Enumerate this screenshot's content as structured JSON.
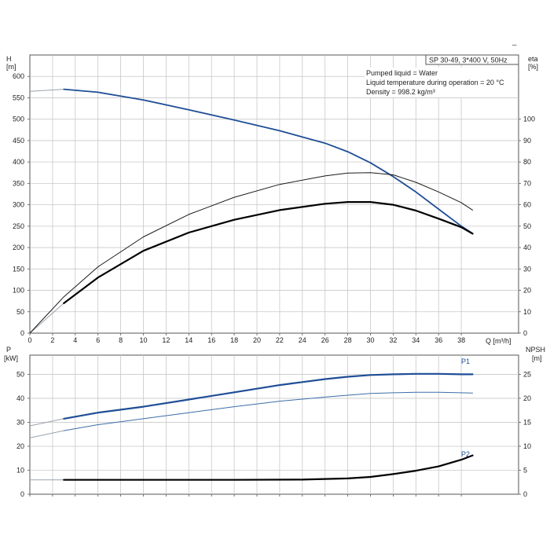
{
  "chart_data": [
    {
      "type": "line",
      "panel": "head-efficiency",
      "title": "SP 30-49, 3*400 V, 50Hz",
      "annotations": [
        "Pumped liquid = Water",
        "Liquid temperature during operation = 20 °C",
        "Density = 998.2 kg/m³"
      ],
      "xlabel": "Q [m³/h]",
      "xlim": [
        0,
        40
      ],
      "xticks": [
        0,
        2,
        4,
        6,
        8,
        10,
        12,
        14,
        16,
        18,
        20,
        22,
        24,
        26,
        28,
        30,
        32,
        34,
        36,
        38
      ],
      "ylabel_left": "H\n[m]",
      "ylabel_left_lines": [
        "H",
        "[m]"
      ],
      "ylim_left": [
        0,
        650
      ],
      "yticks_left": [
        0,
        50,
        100,
        150,
        200,
        250,
        300,
        350,
        400,
        450,
        500,
        550,
        600
      ],
      "ylabel_right_lines": [
        "eta",
        "[%]"
      ],
      "ylim_right": [
        0,
        130
      ],
      "yticks_right": [
        0,
        10,
        20,
        30,
        40,
        50,
        60,
        70,
        80,
        90,
        100
      ],
      "grid": true,
      "series": [
        {
          "axis": "left",
          "color": "#1f4e96",
          "extension_color": "#9aa3ad",
          "extension": [
            [
              0,
              565
            ],
            [
              3,
              570
            ]
          ],
          "points": [
            [
              3,
              570
            ],
            [
              6,
              563
            ],
            [
              10,
              545
            ],
            [
              14,
              522
            ],
            [
              18,
              498
            ],
            [
              22,
              473
            ],
            [
              26,
              444
            ],
            [
              28,
              424
            ],
            [
              30,
              398
            ],
            [
              32,
              366
            ],
            [
              34,
              330
            ],
            [
              36,
              290
            ],
            [
              38,
              250
            ],
            [
              39,
              233
            ]
          ]
        },
        {
          "axis": "right",
          "color": "#000000",
          "width": 2.2,
          "extension_color": "#9aa3ad",
          "extension": [
            [
              0,
              0
            ],
            [
              3,
              14
            ]
          ],
          "points": [
            [
              3,
              14
            ],
            [
              6,
              26
            ],
            [
              10,
              38.5
            ],
            [
              14,
              47
            ],
            [
              18,
              53
            ],
            [
              22,
              57.5
            ],
            [
              26,
              60.5
            ],
            [
              28,
              61.3
            ],
            [
              30,
              61.3
            ],
            [
              32,
              60
            ],
            [
              34,
              57.3
            ],
            [
              36,
              53.5
            ],
            [
              38,
              49.5
            ],
            [
              39,
              46.5
            ]
          ]
        },
        {
          "axis": "right",
          "color": "#1a1a1a",
          "width": 1,
          "points": [
            [
              0,
              0
            ],
            [
              3,
              17
            ],
            [
              6,
              31
            ],
            [
              10,
              45
            ],
            [
              14,
              55.5
            ],
            [
              18,
              63.5
            ],
            [
              22,
              69.5
            ],
            [
              26,
              73.5
            ],
            [
              28,
              74.8
            ],
            [
              30,
              75
            ],
            [
              32,
              74
            ],
            [
              34,
              70.5
            ],
            [
              36,
              66
            ],
            [
              38,
              61
            ],
            [
              39,
              57.5
            ]
          ]
        }
      ]
    },
    {
      "type": "line",
      "panel": "power-npsh",
      "xlim": [
        0,
        40
      ],
      "ylabel_left_lines": [
        "P",
        "[kW]"
      ],
      "ylim_left": [
        0,
        58
      ],
      "yticks_left": [
        0,
        10,
        20,
        30,
        40,
        50
      ],
      "ylabel_right_lines": [
        "NPSH",
        "[m]"
      ],
      "ylim_right": [
        0,
        29
      ],
      "yticks_right": [
        0,
        5,
        10,
        15,
        20,
        25
      ],
      "grid": true,
      "series": [
        {
          "name": "P1",
          "axis": "left",
          "color": "#1f4e96",
          "width": 2.2,
          "extension_color": "#9aa3ad",
          "extension": [
            [
              0,
              28.5
            ],
            [
              3,
              31.5
            ]
          ],
          "points": [
            [
              3,
              31.5
            ],
            [
              6,
              34
            ],
            [
              10,
              36.5
            ],
            [
              14,
              39.5
            ],
            [
              18,
              42.5
            ],
            [
              22,
              45.5
            ],
            [
              26,
              48
            ],
            [
              28,
              49
            ],
            [
              30,
              49.7
            ],
            [
              32,
              50
            ],
            [
              34,
              50.2
            ],
            [
              36,
              50.2
            ],
            [
              38,
              50
            ],
            [
              39,
              50
            ]
          ]
        },
        {
          "name": "P2",
          "axis": "left",
          "color": "#3c6ea8",
          "width": 1,
          "extension_color": "#9aa3ad",
          "extension": [
            [
              0,
              23.5
            ],
            [
              3,
              26.5
            ]
          ],
          "points": [
            [
              3,
              26.5
            ],
            [
              6,
              29
            ],
            [
              10,
              31.5
            ],
            [
              14,
              34
            ],
            [
              18,
              36.5
            ],
            [
              22,
              38.8
            ],
            [
              26,
              40.5
            ],
            [
              28,
              41.3
            ],
            [
              30,
              42
            ],
            [
              32,
              42.3
            ],
            [
              34,
              42.5
            ],
            [
              36,
              42.5
            ],
            [
              38,
              42.3
            ],
            [
              39,
              42.2
            ]
          ]
        },
        {
          "axis": "right",
          "color": "#000000",
          "width": 2.2,
          "extension_color": "#9aa3ad",
          "extension": [
            [
              0,
              3
            ],
            [
              3,
              3
            ]
          ],
          "points": [
            [
              3,
              3
            ],
            [
              10,
              3
            ],
            [
              18,
              3
            ],
            [
              24,
              3.05
            ],
            [
              28,
              3.3
            ],
            [
              30,
              3.6
            ],
            [
              32,
              4.2
            ],
            [
              34,
              4.9
            ],
            [
              36,
              5.8
            ],
            [
              38,
              7.2
            ],
            [
              39,
              8.1
            ]
          ]
        }
      ]
    }
  ]
}
